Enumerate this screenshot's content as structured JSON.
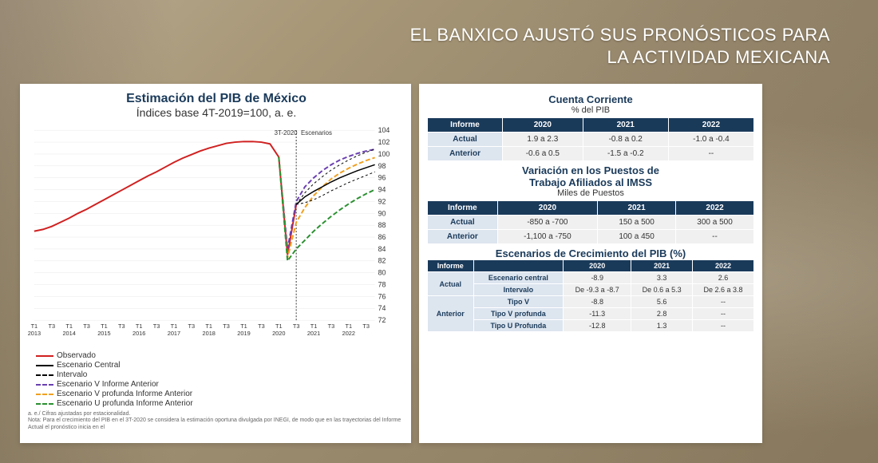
{
  "headline_l1": "EL BANXICO AJUSTÓ SUS PRONÓSTICOS PARA",
  "headline_l2": "LA ACTIVIDAD MEXICANA",
  "chart": {
    "title": "Estimación del PIB de México",
    "subtitle": "Índices base 4T-2019=100, a. e.",
    "ann1": "3T-2020",
    "ann2": "Escenarios",
    "ylim": [
      72,
      104
    ],
    "ytick_step": 2,
    "x_ticks": [
      "T1\n2013",
      "T3",
      "T1\n2014",
      "T3",
      "T1\n2015",
      "T3",
      "T1\n2016",
      "T3",
      "T1\n2017",
      "T3",
      "T1\n2018",
      "T3",
      "T1\n2019",
      "T3",
      "T1\n2020",
      "T3",
      "T1\n2021",
      "T3",
      "T1\n2022",
      "T3"
    ],
    "grid_color": "#e8e8e8",
    "series": {
      "observado": {
        "color": "#d02020",
        "dash": "",
        "w": 2,
        "label": "Observado",
        "y": [
          87,
          87.3,
          87.8,
          88.5,
          89.2,
          90,
          90.7,
          91.5,
          92.3,
          93.1,
          93.9,
          94.7,
          95.5,
          96.3,
          97,
          97.8,
          98.6,
          99.3,
          99.9,
          100.5,
          101,
          101.4,
          101.8,
          102,
          102.1,
          102.1,
          102,
          101.7,
          99.5,
          83,
          91.5
        ]
      },
      "central": {
        "color": "#000000",
        "dash": "",
        "w": 1.5,
        "label": "Escenario Central",
        "start": 30,
        "y": [
          91.5,
          92.8,
          93.7,
          94.5,
          95.3,
          96,
          96.6,
          97.2,
          97.7,
          98.2
        ]
      },
      "intervalo_hi": {
        "color": "#000000",
        "dash": "3,3",
        "w": 1,
        "label": "Intervalo",
        "start": 30,
        "y": [
          91.5,
          93.5,
          95,
          96.2,
          97.3,
          98.2,
          99,
          99.7,
          100.3,
          100.8
        ]
      },
      "intervalo_lo": {
        "color": "#000000",
        "dash": "3,3",
        "w": 1,
        "label": "",
        "start": 30,
        "y": [
          91.5,
          91.8,
          92.3,
          93,
          93.8,
          94.5,
          95.2,
          95.8,
          96.4,
          97
        ]
      },
      "v_ant": {
        "color": "#6a3fb0",
        "dash": "6,3",
        "w": 2,
        "label": "Escenario V Informe Anterior",
        "start": 28,
        "y": [
          99.5,
          84,
          92,
          94.5,
          96,
          97.2,
          98.2,
          99,
          99.6,
          100.1,
          100.5,
          100.8
        ]
      },
      "vprof_ant": {
        "color": "#f0a020",
        "dash": "6,3",
        "w": 2,
        "label": "Escenario V profunda Informe Anterior",
        "start": 28,
        "y": [
          99.5,
          82.5,
          88.5,
          91,
          93,
          94.5,
          95.8,
          96.8,
          97.6,
          98.3,
          98.9,
          99.4
        ]
      },
      "uprof_ant": {
        "color": "#2a9030",
        "dash": "6,3",
        "w": 2,
        "label": "Escenario U profunda Informe Anterior",
        "start": 28,
        "y": [
          99.5,
          82,
          84,
          85.5,
          87,
          88.3,
          89.5,
          90.6,
          91.6,
          92.5,
          93.3,
          94
        ]
      }
    },
    "footnote1": "a. e./ Cifras ajustadas por estacionalidad.",
    "footnote2": "Nota: Para el crecimiento del PIB en el 3T-2020 se considera la estimación oportuna divulgada por INEGI, de modo que en las trayectorias del Informe Actual el pronóstico inicia en el"
  },
  "t1": {
    "title": "Cuenta Corriente",
    "sub": "% del PIB",
    "headers": [
      "Informe",
      "2020",
      "2021",
      "2022"
    ],
    "rows": [
      [
        "Actual",
        "1.9 a 2.3",
        "-0.8 a 0.2",
        "-1.0 a -0.4"
      ],
      [
        "Anterior",
        "-0.6 a 0.5",
        "-1.5 a -0.2",
        "--"
      ]
    ]
  },
  "t2": {
    "title": "Variación en los Puestos de",
    "sub": "Trabajo Afiliados al IMSS",
    "sub2": "Miles de Puestos",
    "headers": [
      "Informe",
      "2020",
      "2021",
      "2022"
    ],
    "rows": [
      [
        "Actual",
        "-850 a -700",
        "150 a 500",
        "300 a 500"
      ],
      [
        "Anterior",
        "-1,100 a -750",
        "100 a 450",
        "--"
      ]
    ]
  },
  "t3": {
    "title": "Escenarios de Crecimiento del PIB (%)",
    "headers": [
      "Informe",
      "",
      "2020",
      "2021",
      "2022"
    ],
    "rows": [
      [
        "Actual",
        "Escenario central",
        "-8.9",
        "3.3",
        "2.6"
      ],
      [
        "",
        "Intervalo",
        "De -9.3 a -8.7",
        "De 0.6 a 5.3",
        "De 2.6 a 3.8"
      ],
      [
        "Anterior",
        "Tipo V",
        "-8.8",
        "5.6",
        "--"
      ],
      [
        "",
        "Tipo V profunda",
        "-11.3",
        "2.8",
        "--"
      ],
      [
        "",
        "Tipo U Profunda",
        "-12.8",
        "1.3",
        "--"
      ]
    ]
  }
}
